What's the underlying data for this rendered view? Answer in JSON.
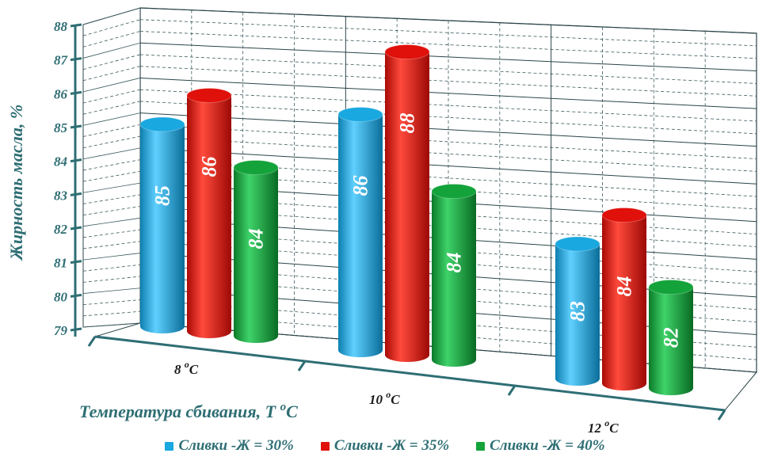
{
  "chart_data": {
    "type": "bar",
    "ylabel": "Жирность масла, %",
    "xlabel": "Температура сбивания, Т",
    "xlabel_unit": "C",
    "xlabel_sup": "o",
    "ylim": [
      79,
      88
    ],
    "yticks": [
      "79",
      "80",
      "81",
      "82",
      "83",
      "84",
      "85",
      "86",
      "87",
      "88"
    ],
    "categories": [
      {
        "value": "8",
        "sup": "o",
        "unit": "C"
      },
      {
        "value": "10",
        "sup": "o",
        "unit": "C"
      },
      {
        "value": "12",
        "sup": "o",
        "unit": "C"
      }
    ],
    "series": [
      {
        "name": "Сливки -Ж  = 30%",
        "color": "#1aa8e0",
        "values": [
          85,
          86,
          83
        ]
      },
      {
        "name": "Сливки -Ж  = 35%",
        "color": "#e0100a",
        "values": [
          86,
          88,
          84
        ]
      },
      {
        "name": "Сливки -Ж  = 40%",
        "color": "#13a33a",
        "values": [
          84,
          84,
          82
        ]
      }
    ],
    "data_labels": [
      [
        "85",
        "86",
        "83"
      ],
      [
        "86",
        "88",
        "84"
      ],
      [
        "84",
        "84",
        "82"
      ]
    ],
    "grid": true,
    "legend_position": "bottom"
  }
}
